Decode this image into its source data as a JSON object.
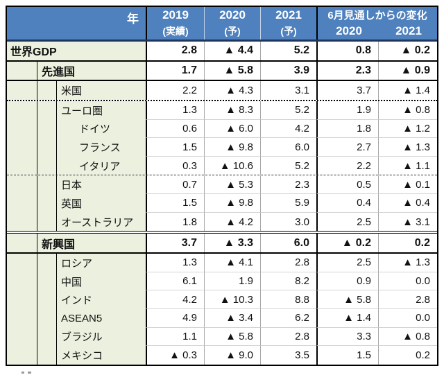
{
  "header": {
    "year_label": "年",
    "year_columns": [
      {
        "line1": "2019",
        "line2": "(実績)"
      },
      {
        "line1": "2020",
        "line2": "(予)"
      },
      {
        "line1": "2021",
        "line2": "(予)"
      }
    ],
    "change_group": {
      "title": "6月見通しからの変化",
      "sub_columns": [
        "2020",
        "2021"
      ]
    }
  },
  "columns_meaning": [
    "2019 実績",
    "2020 予測",
    "2021 予測",
    "6月見通しからの変化 2020",
    "6月見通しからの変化 2021"
  ],
  "rows": [
    {
      "label": "世界GDP",
      "level": 0,
      "bold": true,
      "values": [
        "2.8",
        "▲ 4.4",
        "5.2",
        "0.8",
        "▲ 0.2"
      ]
    },
    {
      "label": "先進国",
      "level": 1,
      "bold": true,
      "values": [
        "1.7",
        "▲ 5.8",
        "3.9",
        "2.3",
        "▲ 0.9"
      ]
    },
    {
      "label": "米国",
      "level": 2,
      "bold": false,
      "values": [
        "2.2",
        "▲ 4.3",
        "3.1",
        "3.7",
        "▲ 1.4"
      ]
    },
    {
      "label": "ユーロ圏",
      "level": 2,
      "bold": false,
      "values": [
        "1.3",
        "▲ 8.3",
        "5.2",
        "1.9",
        "▲ 0.8"
      ]
    },
    {
      "label": "ドイツ",
      "level": 3,
      "bold": false,
      "values": [
        "0.6",
        "▲ 6.0",
        "4.2",
        "1.8",
        "▲ 1.2"
      ]
    },
    {
      "label": "フランス",
      "level": 3,
      "bold": false,
      "values": [
        "1.5",
        "▲ 9.8",
        "6.0",
        "2.7",
        "▲ 1.3"
      ]
    },
    {
      "label": "イタリア",
      "level": 3,
      "bold": false,
      "values": [
        "0.3",
        "▲ 10.6",
        "5.2",
        "2.2",
        "▲ 1.1"
      ]
    },
    {
      "label": "日本",
      "level": 2,
      "bold": false,
      "values": [
        "0.7",
        "▲ 5.3",
        "2.3",
        "0.5",
        "▲ 0.1"
      ]
    },
    {
      "label": "英国",
      "level": 2,
      "bold": false,
      "values": [
        "1.5",
        "▲ 9.8",
        "5.9",
        "0.4",
        "▲ 0.4"
      ]
    },
    {
      "label": "オーストラリア",
      "level": 2,
      "bold": false,
      "values": [
        "1.8",
        "▲ 4.2",
        "3.0",
        "2.5",
        "▲ 3.1"
      ]
    },
    {
      "label": "新興国",
      "level": 1,
      "bold": true,
      "values": [
        "3.7",
        "▲ 3.3",
        "6.0",
        "▲ 0.2",
        "0.2"
      ]
    },
    {
      "label": "ロシア",
      "level": 2,
      "bold": false,
      "values": [
        "1.3",
        "▲ 4.1",
        "2.8",
        "2.5",
        "▲ 1.3"
      ]
    },
    {
      "label": "中国",
      "level": 2,
      "bold": false,
      "values": [
        "6.1",
        "1.9",
        "8.2",
        "0.9",
        "0.0"
      ]
    },
    {
      "label": "インド",
      "level": 2,
      "bold": false,
      "values": [
        "4.2",
        "▲ 10.3",
        "8.8",
        "▲ 5.8",
        "2.8"
      ]
    },
    {
      "label": "ASEAN5",
      "level": 2,
      "bold": false,
      "values": [
        "4.9",
        "▲ 3.4",
        "6.2",
        "▲ 1.4",
        "0.0"
      ]
    },
    {
      "label": "ブラジル",
      "level": 2,
      "bold": false,
      "values": [
        "1.1",
        "▲ 5.8",
        "2.8",
        "3.3",
        "▲ 0.8"
      ]
    },
    {
      "label": "メキシコ",
      "level": 2,
      "bold": false,
      "values": [
        "▲ 0.3",
        "▲ 9.0",
        "3.5",
        "1.5",
        "0.2"
      ]
    }
  ],
  "colors": {
    "header_bg": "#4E81BD",
    "header_text": "#FFFFFF",
    "header_rule": "#1E355E",
    "label_bg": "#EBF1DE",
    "grid_black": "#000000",
    "grid_gray": "#A8A8A8",
    "row_separator": "#D4D4D4"
  },
  "negative_marker": "▲"
}
